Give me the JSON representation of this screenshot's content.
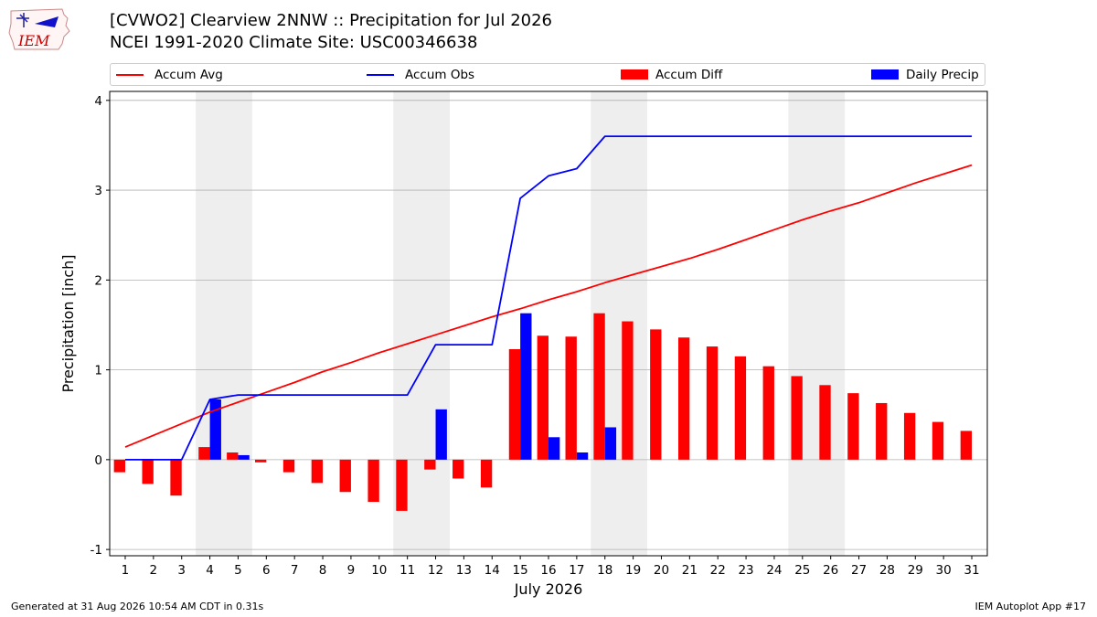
{
  "header": {
    "title_line1": "[CVWO2] Clearview 2NNW :: Precipitation for Jul 2026",
    "title_line2": "NCEI 1991-2020 Climate Site: USC00346638",
    "logo_text": "IEM"
  },
  "footer": {
    "left": "Generated at 31 Aug 2026 10:54 AM CDT in 0.31s",
    "right": "IEM Autoplot App #17"
  },
  "colors": {
    "accum_avg": "#ff0000",
    "accum_obs": "#0000ff",
    "accum_diff": "#ff0000",
    "daily_precip": "#0000ff",
    "weekend_shade": "#eeeeee",
    "grid": "#b0b0b0"
  },
  "chart_data": {
    "type": "bar",
    "xlabel": "July 2026",
    "ylabel": "Precipitation [inch]",
    "ylim": [
      -1.07,
      4.1
    ],
    "yticks": [
      -1,
      0,
      1,
      2,
      3,
      4
    ],
    "xlim": [
      0.45,
      31.55
    ],
    "x": [
      1,
      2,
      3,
      4,
      5,
      6,
      7,
      8,
      9,
      10,
      11,
      12,
      13,
      14,
      15,
      16,
      17,
      18,
      19,
      20,
      21,
      22,
      23,
      24,
      25,
      26,
      27,
      28,
      29,
      30,
      31
    ],
    "grid": "horizontal",
    "legend_position": "top",
    "shaded_days": [
      [
        4,
        5
      ],
      [
        11,
        12
      ],
      [
        18,
        19
      ],
      [
        25,
        26
      ]
    ],
    "legend": [
      "Accum Avg",
      "Accum Obs",
      "Accum Diff",
      "Daily Precip"
    ],
    "series": [
      {
        "name": "Accum Avg",
        "kind": "line",
        "values": [
          0.14,
          0.27,
          0.4,
          0.53,
          0.64,
          0.75,
          0.86,
          0.98,
          1.08,
          1.19,
          1.29,
          1.39,
          1.49,
          1.59,
          1.68,
          1.78,
          1.87,
          1.97,
          2.06,
          2.15,
          2.24,
          2.34,
          2.45,
          2.56,
          2.67,
          2.77,
          2.86,
          2.97,
          3.08,
          3.18,
          3.28
        ]
      },
      {
        "name": "Accum Obs",
        "kind": "line",
        "values": [
          0,
          0,
          0,
          0.67,
          0.72,
          0.72,
          0.72,
          0.72,
          0.72,
          0.72,
          0.72,
          1.28,
          1.28,
          1.28,
          2.91,
          3.16,
          3.24,
          3.6,
          3.6,
          3.6,
          3.6,
          3.6,
          3.6,
          3.6,
          3.6,
          3.6,
          3.6,
          3.6,
          3.6,
          3.6,
          3.6
        ]
      },
      {
        "name": "Accum Diff",
        "kind": "bar",
        "values": [
          -0.14,
          -0.27,
          -0.4,
          0.14,
          0.08,
          -0.03,
          -0.14,
          -0.26,
          -0.36,
          -0.47,
          -0.57,
          -0.11,
          -0.21,
          -0.31,
          1.23,
          1.38,
          1.37,
          1.63,
          1.54,
          1.45,
          1.36,
          1.26,
          1.15,
          1.04,
          0.93,
          0.83,
          0.74,
          0.63,
          0.52,
          0.42,
          0.32
        ]
      },
      {
        "name": "Daily Precip",
        "kind": "bar",
        "values": [
          0,
          0,
          0,
          0.67,
          0.05,
          0,
          0,
          0,
          0,
          0,
          0,
          0.56,
          0,
          0,
          1.63,
          0.25,
          0.08,
          0.36,
          0,
          0,
          0,
          0,
          0,
          0,
          0,
          0,
          0,
          0,
          0,
          0,
          0
        ]
      }
    ]
  }
}
